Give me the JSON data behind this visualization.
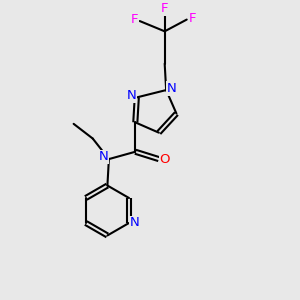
{
  "bg_color": "#e8e8e8",
  "bond_color": "#000000",
  "N_color": "#0000ff",
  "O_color": "#ff0000",
  "F_color": "#ff00ff",
  "line_width": 1.5,
  "font_size": 9.5,
  "fig_size": [
    3.0,
    3.0
  ],
  "dpi": 100,
  "xlim": [
    0,
    10
  ],
  "ylim": [
    0,
    10
  ]
}
